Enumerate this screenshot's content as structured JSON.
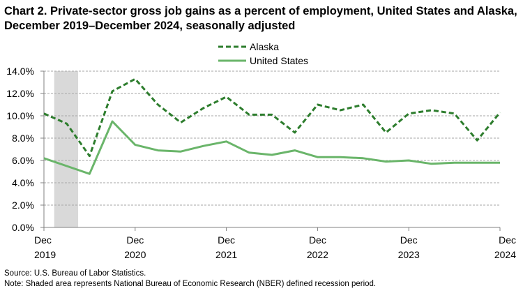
{
  "title": "Chart 2. Private-sector gross job gains as a percent of employment, United States and Alaska, December 2019–December 2024, seasonally adjusted",
  "notes": {
    "source": "Source: U.S. Bureau of Labor Statistics.",
    "note": "Note: Shaded area represents National Bureau of Economic Research (NBER) defined recession period."
  },
  "chart_data": {
    "type": "line",
    "x": [
      "Dec 2019",
      "Mar 2020",
      "Jun 2020",
      "Sep 2020",
      "Dec 2020",
      "Mar 2021",
      "Jun 2021",
      "Sep 2021",
      "Dec 2021",
      "Mar 2022",
      "Jun 2022",
      "Sep 2022",
      "Dec 2022",
      "Mar 2023",
      "Jun 2023",
      "Sep 2023",
      "Dec 2023",
      "Mar 2024",
      "Jun 2024",
      "Sep 2024",
      "Dec 2024"
    ],
    "series": [
      {
        "name": "Alaska",
        "color": "#2d7d2d",
        "dash": "dashed",
        "values": [
          10.2,
          9.3,
          6.4,
          12.2,
          13.3,
          11.0,
          9.4,
          10.7,
          11.7,
          10.1,
          10.1,
          8.5,
          11.0,
          10.5,
          11.0,
          8.5,
          10.2,
          10.5,
          10.2,
          7.8,
          10.3
        ]
      },
      {
        "name": "United States",
        "color": "#6ab56a",
        "dash": "solid",
        "values": [
          6.2,
          5.5,
          4.8,
          9.5,
          7.4,
          6.9,
          6.8,
          7.3,
          7.7,
          6.7,
          6.5,
          6.9,
          6.3,
          6.3,
          6.2,
          5.9,
          6.0,
          5.7,
          5.8,
          5.8,
          5.8
        ]
      }
    ],
    "ylim": [
      0,
      14
    ],
    "yticks": [
      "0.0%",
      "2.0%",
      "4.0%",
      "6.0%",
      "8.0%",
      "10.0%",
      "12.0%",
      "14.0%"
    ],
    "xticks": [
      {
        "month": "Dec",
        "year": "2019",
        "index": 0
      },
      {
        "month": "Dec",
        "year": "2020",
        "index": 4
      },
      {
        "month": "Dec",
        "year": "2021",
        "index": 8
      },
      {
        "month": "Dec",
        "year": "2022",
        "index": 12
      },
      {
        "month": "Dec",
        "year": "2023",
        "index": 16
      },
      {
        "month": "Dec",
        "year": "2024",
        "index": 20
      }
    ],
    "recession": {
      "from": "Mar 2020",
      "to": "Apr 2020",
      "from_index": 1,
      "to_index": 2,
      "color": "#d9d9d9"
    },
    "grid": true,
    "legend": "top-center"
  }
}
